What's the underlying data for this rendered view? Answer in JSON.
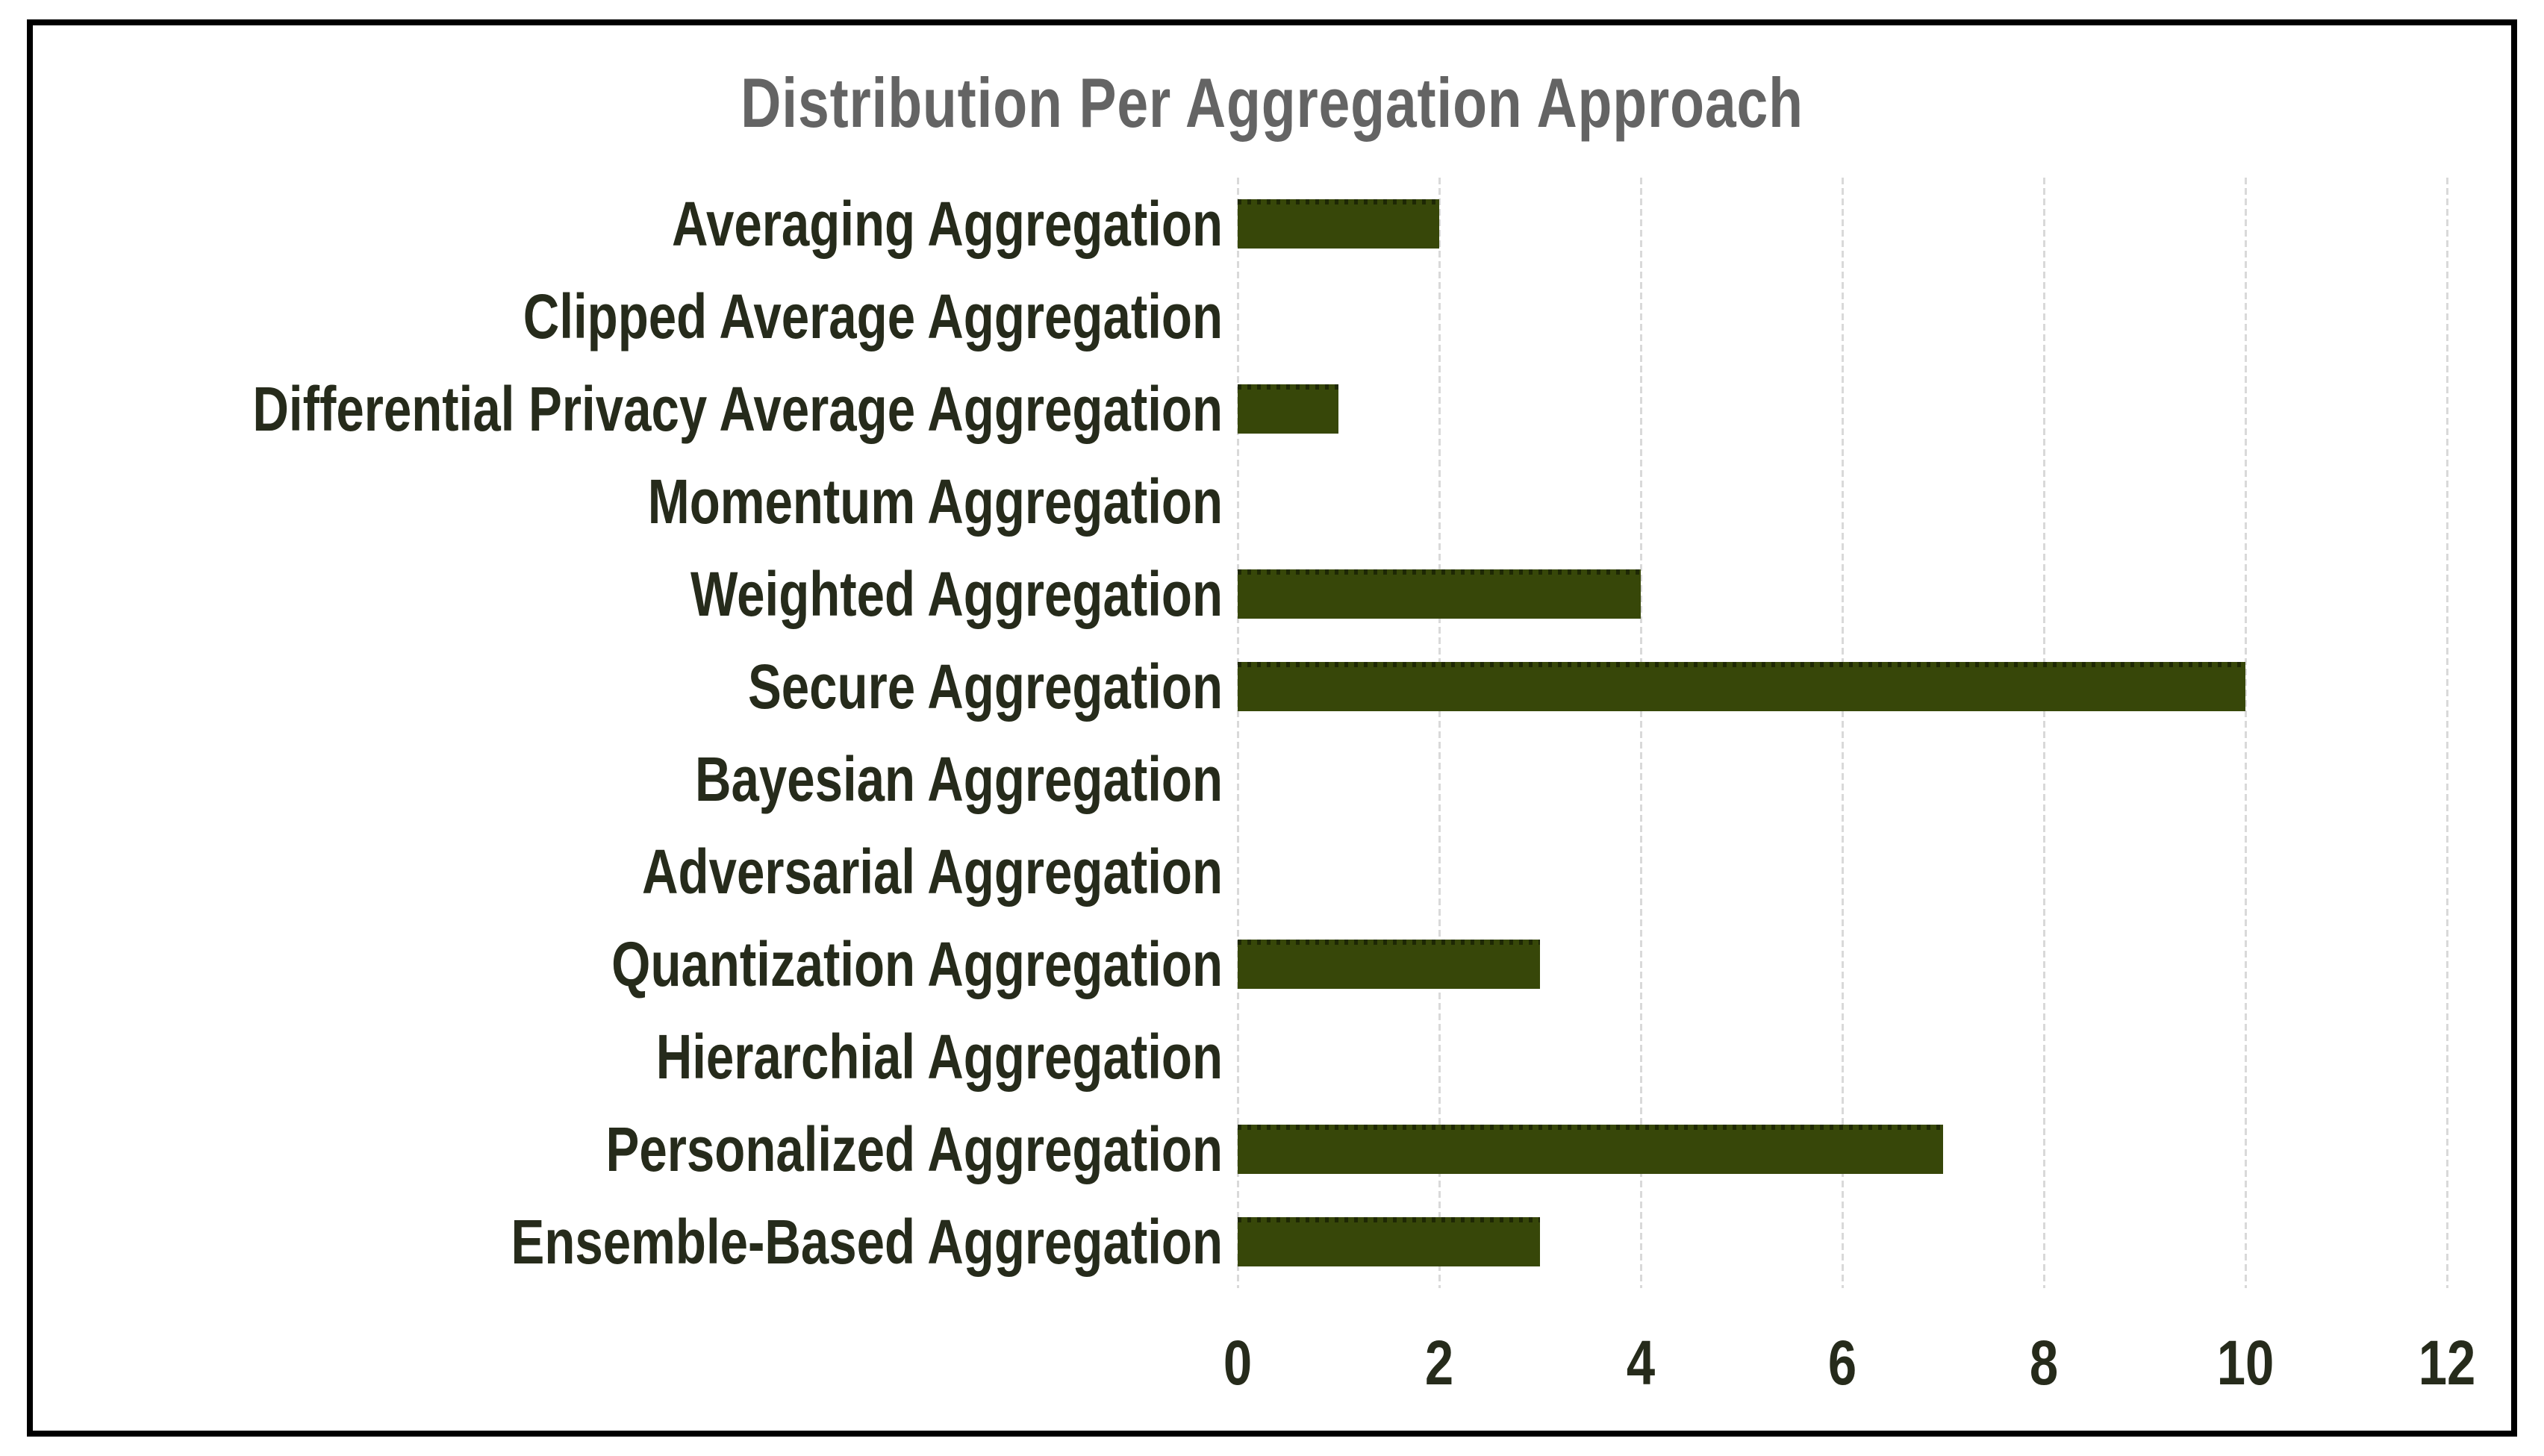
{
  "figure": {
    "title": "Distribution Per Aggregation Approach"
  },
  "colors": {
    "background": "#ffffff",
    "frame_border": "#000000",
    "bar": "#374709",
    "title_text": "#646464",
    "label_text": "#262b1b",
    "tick_text": "#262b1b",
    "gridline": "#d9d9d9"
  },
  "chart_data": {
    "type": "bar",
    "orientation": "horizontal",
    "title": "Distribution Per Aggregation Approach",
    "categories": [
      "Averaging Aggregation",
      "Clipped Average Aggregation",
      "Differential Privacy Average Aggregation",
      "Momentum Aggregation",
      "Weighted Aggregation",
      "Secure Aggregation",
      "Bayesian Aggregation",
      "Adversarial Aggregation",
      "Quantization Aggregation",
      "Hierarchial Aggregation",
      "Personalized Aggregation",
      "Ensemble-Based Aggregation"
    ],
    "values": [
      2,
      0,
      1,
      0,
      4,
      10,
      0,
      0,
      3,
      0,
      7,
      3
    ],
    "x_ticks": [
      0,
      2,
      4,
      6,
      8,
      10,
      12
    ],
    "xlim": [
      0,
      12
    ],
    "xlabel": "",
    "ylabel": "",
    "grid": true,
    "legend": false,
    "bar_color": "#374709"
  }
}
